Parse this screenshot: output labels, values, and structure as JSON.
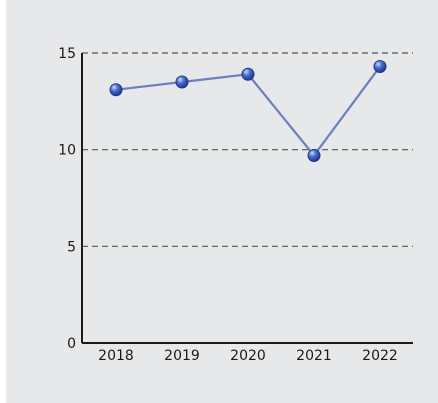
{
  "chart_data": {
    "type": "line",
    "title": "",
    "xlabel": "",
    "ylabel": "",
    "categories": [
      "2018",
      "2019",
      "2020",
      "2021",
      "2022"
    ],
    "series": [
      {
        "values": [
          13.1,
          13.5,
          13.9,
          9.7,
          14.3
        ]
      }
    ],
    "ylim": [
      0,
      15
    ],
    "yticks": [
      "0",
      "5",
      "10",
      "15"
    ],
    "grid": "horizontal-dashed",
    "colors": {
      "line": "#6d7fc0",
      "marker": "#2f4fa8",
      "grid": "#555555",
      "background": "#e7e8ea"
    }
  }
}
